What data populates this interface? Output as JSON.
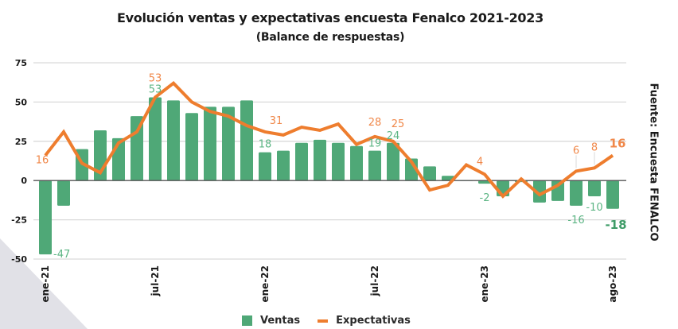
{
  "chart_data": {
    "type": "bar",
    "title": "Evolución ventas y expectativas encuesta Fenalco 2021-2023",
    "subtitle": "(Balance de respuestas)",
    "source": "Fuente: Encuesta FENALCO",
    "xlabel": "",
    "ylabel": "",
    "ylim": [
      -50,
      75
    ],
    "yticks": [
      75,
      50,
      25,
      0,
      -25,
      -50
    ],
    "grid": true,
    "legend_position": "bottom",
    "x": [
      "ene-21",
      "feb-21",
      "mar-21",
      "abr-21",
      "may-21",
      "jun-21",
      "jul-21",
      "ago-21",
      "sep-21",
      "oct-21",
      "nov-21",
      "dic-21",
      "ene-22",
      "feb-22",
      "mar-22",
      "abr-22",
      "may-22",
      "jun-22",
      "jul-22",
      "ago-22",
      "sep-22",
      "oct-22",
      "nov-22",
      "dic-22",
      "ene-23",
      "feb-23",
      "mar-23",
      "abr-23",
      "may-23",
      "jun-23",
      "jul-23",
      "ago-23"
    ],
    "xtick_labels": [
      {
        "index": 0,
        "label": "ene-21"
      },
      {
        "index": 6,
        "label": "jul-21"
      },
      {
        "index": 12,
        "label": "ene-22"
      },
      {
        "index": 18,
        "label": "jul-22"
      },
      {
        "index": 24,
        "label": "ene-23"
      },
      {
        "index": 31,
        "label": "ago-23"
      }
    ],
    "series": [
      {
        "name": "Ventas",
        "type": "bar",
        "color": "#4fa877",
        "label_color": "#5cb584",
        "values": [
          -47,
          -16,
          20,
          32,
          27,
          41,
          53,
          51,
          43,
          47,
          47,
          51,
          18,
          19,
          24,
          26,
          24,
          22,
          19,
          24,
          14,
          9,
          3,
          0,
          -2,
          -10,
          -1,
          -14,
          -13,
          -16,
          -10,
          -18
        ],
        "data_labels": [
          {
            "index": 0,
            "text": "-47"
          },
          {
            "index": 6,
            "text": "53"
          },
          {
            "index": 12,
            "text": "18"
          },
          {
            "index": 18,
            "text": "19"
          },
          {
            "index": 19,
            "text": "24"
          },
          {
            "index": 24,
            "text": "-2"
          },
          {
            "index": 29,
            "text": "-16"
          },
          {
            "index": 30,
            "text": "-10"
          },
          {
            "index": 31,
            "text": "-18",
            "bold": true
          }
        ]
      },
      {
        "name": "Expectativas",
        "type": "line",
        "color": "#ee7d2e",
        "label_color": "#f0884a",
        "values": [
          16,
          31,
          11,
          5,
          24,
          31,
          53,
          62,
          50,
          44,
          41,
          35,
          31,
          29,
          34,
          32,
          36,
          23,
          28,
          25,
          12,
          -6,
          -3,
          10,
          4,
          -10,
          1,
          -9,
          -3,
          6,
          8,
          16
        ],
        "data_labels": [
          {
            "index": 0,
            "text": "16"
          },
          {
            "index": 6,
            "text": "53"
          },
          {
            "index": 12,
            "text": "31"
          },
          {
            "index": 18,
            "text": "28"
          },
          {
            "index": 19,
            "text": "25"
          },
          {
            "index": 24,
            "text": "4"
          },
          {
            "index": 29,
            "text": "6"
          },
          {
            "index": 30,
            "text": "8"
          },
          {
            "index": 31,
            "text": "16",
            "bold": true
          }
        ]
      }
    ]
  },
  "legend": {
    "items": [
      {
        "label": "Ventas"
      },
      {
        "label": "Expectativas"
      }
    ]
  }
}
